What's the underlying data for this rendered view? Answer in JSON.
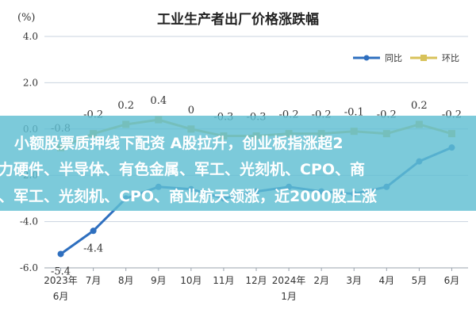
{
  "chart_data": {
    "type": "line",
    "title": "工业生产者出厂价格涨跌幅",
    "unit_label": "(%)",
    "categories": [
      [
        "2023年",
        "6月"
      ],
      [
        "7月"
      ],
      [
        "8月"
      ],
      [
        "9月"
      ],
      [
        "10月"
      ],
      [
        "11月"
      ],
      [
        "12月"
      ],
      [
        "2024年",
        "1月"
      ],
      [
        "2月"
      ],
      [
        "3月"
      ],
      [
        "4月"
      ],
      [
        "5月"
      ],
      [
        "6月"
      ]
    ],
    "ylim": [
      -6.0,
      4.0
    ],
    "yticks": [
      "4.0",
      "2.0",
      "0.0",
      "-2.0",
      "-4.0",
      "-6.0"
    ],
    "ytick_values": [
      4,
      2,
      0,
      -2,
      -4,
      -6
    ],
    "grid": true,
    "legend": "top-right",
    "series": [
      {
        "name": "同比",
        "color": "#2E6FBF",
        "values": [
          -5.4,
          -4.4,
          -3.0,
          -2.5,
          -2.6,
          -3.0,
          -2.7,
          -2.5,
          -2.7,
          -2.8,
          -2.5,
          -1.4,
          -0.8
        ],
        "labels": [
          "-5.4",
          "-4.4",
          "",
          "",
          "",
          "",
          "",
          "",
          "",
          "",
          "",
          "",
          ""
        ]
      },
      {
        "name": "环比",
        "color": "#D8C25A",
        "values": [
          -0.8,
          -0.2,
          0.2,
          0.4,
          0.0,
          -0.3,
          -0.3,
          -0.2,
          -0.2,
          -0.1,
          -0.2,
          0.2,
          -0.2
        ],
        "labels": [
          "-0.8",
          "-0.2",
          "0.2",
          "0.4",
          "0",
          "-0.3",
          "-0.3",
          "-0.2",
          "-0.2",
          "-0.1",
          "-0.2",
          "0.2",
          "-0.2"
        ]
      }
    ]
  },
  "banner": {
    "line1": "小额股票质押线下配资 A股拉升，创业板指涨超2",
    "line2": "力硬件、半导体、有色金属、军工、光刻机、CPO、商",
    "line3": "、军工、光刻机、CPO、商业航天领涨，近2000股上涨"
  }
}
